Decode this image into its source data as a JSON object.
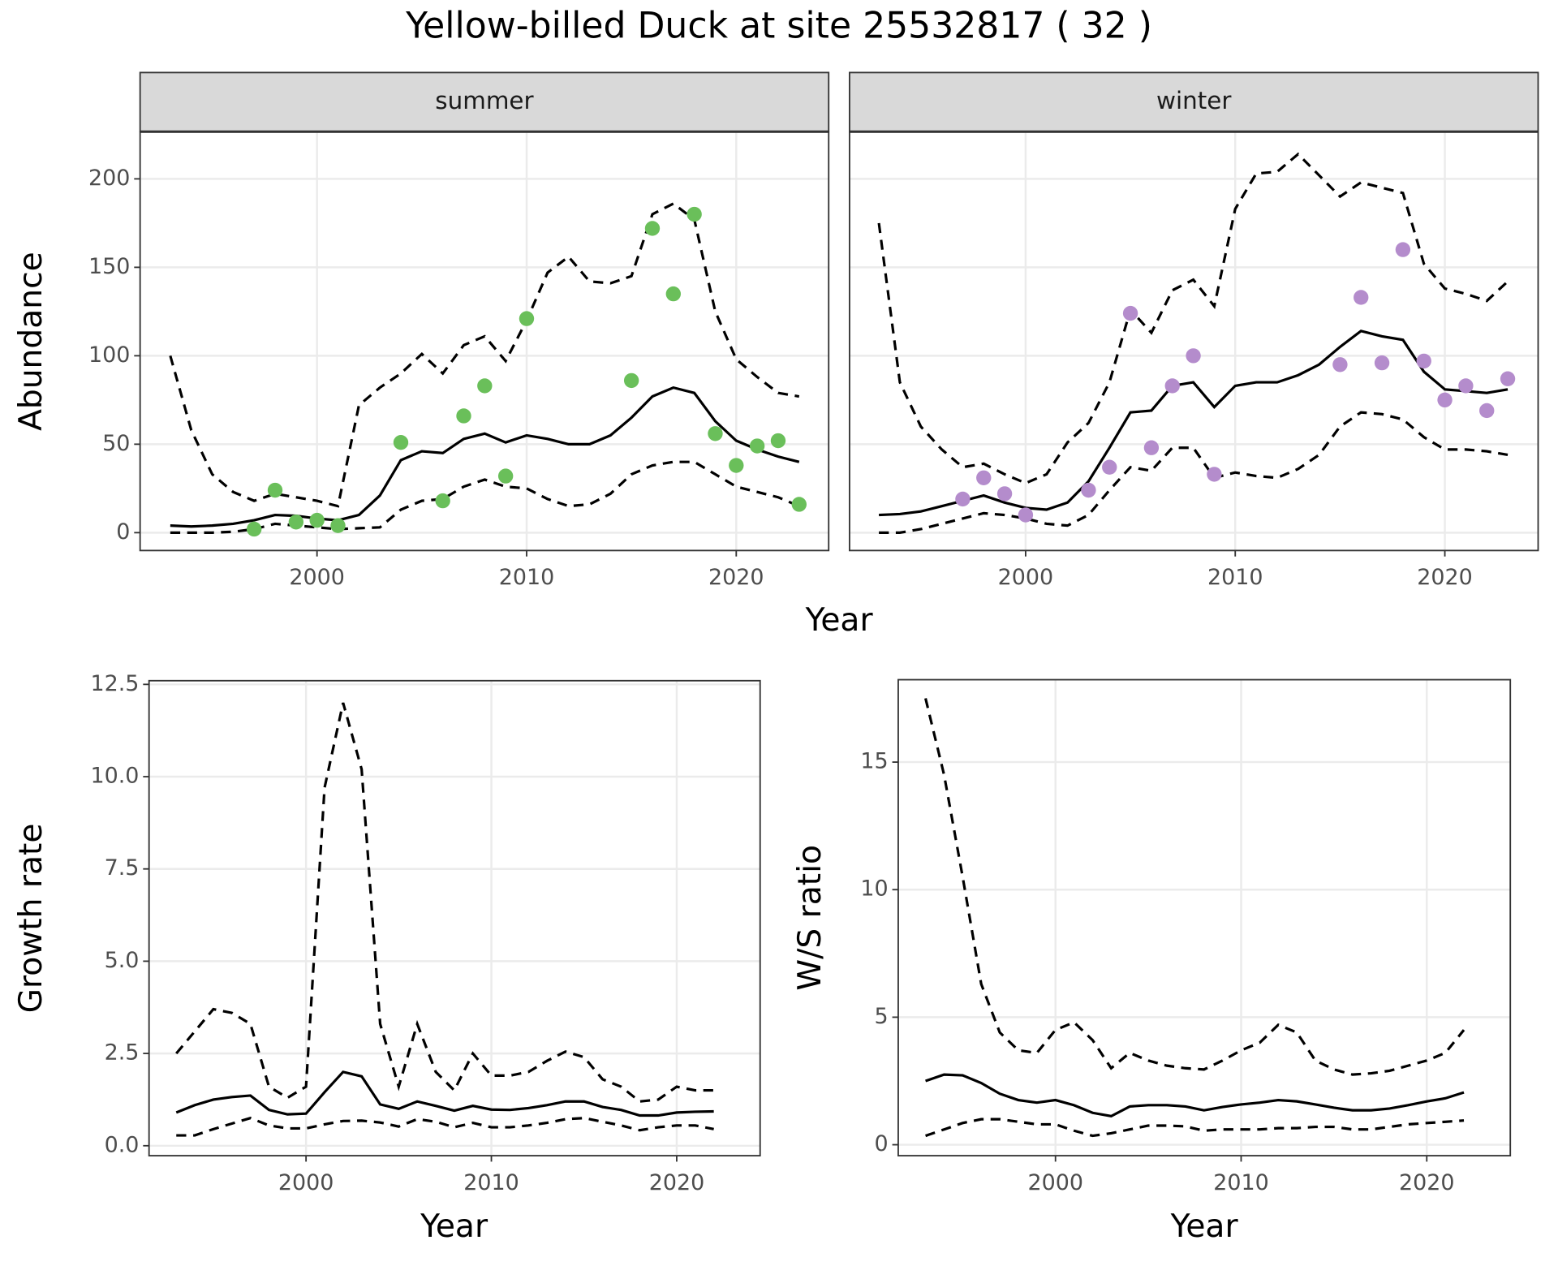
{
  "title": "Yellow-billed Duck at site 25532817 ( 32 )",
  "chart_data": [
    {
      "type": "line",
      "facet": "summer",
      "ylabel": "Abundance",
      "xlabel": "Year",
      "x": [
        1993,
        1994,
        1995,
        1996,
        1997,
        1998,
        1999,
        2000,
        2001,
        2002,
        2003,
        2004,
        2005,
        2006,
        2007,
        2008,
        2009,
        2010,
        2011,
        2012,
        2013,
        2014,
        2015,
        2016,
        2017,
        2018,
        2019,
        2020,
        2021,
        2022,
        2023
      ],
      "series": [
        {
          "color": "#000000",
          "dash": "solid",
          "values": [
            4,
            3.5,
            4,
            5,
            7,
            10,
            9.5,
            8,
            7,
            10,
            21,
            41,
            46,
            45,
            53,
            56,
            51,
            55,
            53,
            50,
            50,
            55,
            65,
            77,
            82,
            79,
            63,
            52,
            47,
            43,
            40
          ]
        },
        {
          "color": "#000000",
          "dash": "dashed",
          "values": [
            100,
            58,
            33,
            23,
            18,
            22,
            20,
            18,
            15,
            72,
            82,
            90,
            101,
            90,
            106,
            111,
            97,
            120,
            147,
            156,
            142,
            141,
            145,
            180,
            186,
            177,
            125,
            98,
            88,
            79,
            77
          ]
        },
        {
          "color": "#000000",
          "dash": "dashed",
          "values": [
            0,
            0,
            0,
            0.5,
            2,
            5,
            4,
            3,
            2,
            2.5,
            3,
            13,
            18,
            19,
            26,
            30,
            26,
            25,
            19,
            15,
            16,
            22,
            33,
            38,
            40,
            40,
            33,
            26,
            23,
            20,
            15
          ]
        }
      ],
      "points": {
        "type": "scatter",
        "color": "#6abf5a",
        "x": [
          1997,
          1998,
          1999,
          2000,
          2001,
          2004,
          2006,
          2007,
          2008,
          2009,
          2010,
          2015,
          2016,
          2017,
          2018,
          2019,
          2020,
          2021,
          2022,
          2023
        ],
        "values": [
          2,
          24,
          6,
          7,
          4,
          51,
          18,
          66,
          83,
          32,
          121,
          86,
          172,
          135,
          180,
          56,
          38,
          49,
          52,
          16
        ]
      },
      "xlim": [
        1991.56,
        2024.41
      ],
      "xticks": [
        2000,
        2010,
        2020
      ],
      "ylim": [
        -10.1,
        226.4
      ],
      "yticks": [
        0,
        50,
        100,
        150,
        200
      ],
      "grid": true
    },
    {
      "type": "line",
      "facet": "winter",
      "x": [
        1993,
        1994,
        1995,
        1996,
        1997,
        1998,
        1999,
        2000,
        2001,
        2002,
        2003,
        2004,
        2005,
        2006,
        2007,
        2008,
        2009,
        2010,
        2011,
        2012,
        2013,
        2014,
        2015,
        2016,
        2017,
        2018,
        2019,
        2020,
        2021,
        2022,
        2023
      ],
      "series": [
        {
          "color": "#000000",
          "dash": "solid",
          "values": [
            10,
            10.5,
            12,
            15,
            18,
            21,
            17,
            14,
            13,
            17,
            29,
            48,
            68,
            69,
            83,
            85,
            71,
            83,
            85,
            85,
            89,
            95,
            105,
            114,
            111,
            109,
            91,
            81,
            80,
            79,
            81
          ]
        },
        {
          "color": "#000000",
          "dash": "dashed",
          "values": [
            175,
            85,
            60,
            47,
            37,
            39,
            33,
            28,
            33,
            51,
            62,
            85,
            126,
            113,
            137,
            143,
            128,
            183,
            203,
            204,
            214,
            202,
            190,
            198,
            195,
            192,
            152,
            138,
            135,
            131,
            142
          ]
        },
        {
          "color": "#000000",
          "dash": "dashed",
          "values": [
            0,
            0,
            2,
            5,
            8,
            11,
            10,
            8,
            5,
            4,
            10,
            24,
            37,
            35,
            48,
            48,
            31,
            34,
            32,
            31,
            36,
            44,
            60,
            68,
            67,
            64,
            54,
            47,
            47,
            46,
            44
          ]
        }
      ],
      "points": {
        "type": "scatter",
        "color": "#b48ccc",
        "x": [
          1997,
          1998,
          1999,
          2000,
          2003,
          2004,
          2005,
          2006,
          2007,
          2008,
          2009,
          2015,
          2016,
          2017,
          2018,
          2019,
          2020,
          2021,
          2022,
          2023
        ],
        "values": [
          19,
          31,
          22,
          10,
          24,
          37,
          124,
          48,
          83,
          100,
          33,
          95,
          133,
          96,
          160,
          97,
          75,
          83,
          69,
          87
        ]
      },
      "xlim": [
        1991.6,
        2024.45
      ],
      "xticks": [
        2000,
        2010,
        2020
      ],
      "grid": true
    },
    {
      "type": "line",
      "ylabel": "Growth rate",
      "xlabel": "Year",
      "x": [
        1993,
        1994,
        1995,
        1996,
        1997,
        1998,
        1999,
        2000,
        2001,
        2002,
        2003,
        2004,
        2005,
        2006,
        2007,
        2008,
        2009,
        2010,
        2011,
        2012,
        2013,
        2014,
        2015,
        2016,
        2017,
        2018,
        2019,
        2020,
        2021,
        2022
      ],
      "series": [
        {
          "color": "#000000",
          "dash": "solid",
          "values": [
            0.9,
            1.1,
            1.25,
            1.32,
            1.36,
            0.97,
            0.85,
            0.87,
            1.45,
            2.0,
            1.88,
            1.12,
            1.0,
            1.2,
            1.08,
            0.95,
            1.08,
            0.98,
            0.97,
            1.02,
            1.1,
            1.2,
            1.2,
            1.05,
            0.97,
            0.82,
            0.82,
            0.9,
            0.92,
            0.93
          ]
        },
        {
          "color": "#000000",
          "dash": "dashed",
          "values": [
            2.5,
            3.1,
            3.7,
            3.6,
            3.3,
            1.6,
            1.3,
            1.6,
            9.7,
            12,
            10.2,
            3.3,
            1.6,
            3.3,
            2.0,
            1.5,
            2.5,
            1.9,
            1.9,
            2.0,
            2.3,
            2.55,
            2.4,
            1.8,
            1.6,
            1.2,
            1.25,
            1.6,
            1.5,
            1.5
          ]
        },
        {
          "color": "#000000",
          "dash": "dashed",
          "values": [
            0.28,
            0.28,
            0.45,
            0.6,
            0.75,
            0.55,
            0.47,
            0.47,
            0.58,
            0.67,
            0.68,
            0.63,
            0.52,
            0.72,
            0.65,
            0.5,
            0.62,
            0.5,
            0.5,
            0.55,
            0.62,
            0.72,
            0.75,
            0.65,
            0.55,
            0.42,
            0.5,
            0.55,
            0.55,
            0.45
          ]
        }
      ],
      "xlim": [
        1991.53,
        2024.5
      ],
      "xticks": [
        2000,
        2010,
        2020
      ],
      "ylim": [
        -0.27,
        12.6
      ],
      "yticks": [
        {
          "value": 0,
          "label": "0.0"
        },
        2.5,
        {
          "value": 5,
          "label": "5.0"
        },
        7.5,
        {
          "value": 10,
          "label": "10.0"
        },
        12.5
      ],
      "grid": true
    },
    {
      "type": "line",
      "ylabel": "W/S ratio",
      "xlabel": "Year",
      "x": [
        1993,
        1994,
        1995,
        1996,
        1997,
        1998,
        1999,
        2000,
        2001,
        2002,
        2003,
        2004,
        2005,
        2006,
        2007,
        2008,
        2009,
        2010,
        2011,
        2012,
        2013,
        2014,
        2015,
        2016,
        2017,
        2018,
        2019,
        2020,
        2021,
        2022
      ],
      "series": [
        {
          "color": "#000000",
          "dash": "solid",
          "values": [
            2.5,
            2.75,
            2.72,
            2.42,
            2.0,
            1.75,
            1.65,
            1.75,
            1.55,
            1.25,
            1.12,
            1.5,
            1.55,
            1.55,
            1.5,
            1.35,
            1.48,
            1.58,
            1.65,
            1.75,
            1.7,
            1.58,
            1.45,
            1.35,
            1.35,
            1.42,
            1.55,
            1.7,
            1.82,
            2.05
          ]
        },
        {
          "color": "#000000",
          "dash": "dashed",
          "values": [
            17.5,
            14.5,
            10.5,
            6.3,
            4.4,
            3.7,
            3.6,
            4.5,
            4.8,
            4.1,
            3.0,
            3.6,
            3.3,
            3.1,
            3.0,
            2.95,
            3.3,
            3.7,
            4.0,
            4.7,
            4.4,
            3.3,
            2.95,
            2.75,
            2.8,
            2.9,
            3.1,
            3.3,
            3.6,
            4.5
          ]
        },
        {
          "color": "#000000",
          "dash": "dashed",
          "values": [
            0.35,
            0.6,
            0.85,
            1.0,
            1.0,
            0.9,
            0.8,
            0.8,
            0.55,
            0.35,
            0.45,
            0.6,
            0.75,
            0.75,
            0.72,
            0.55,
            0.6,
            0.6,
            0.6,
            0.65,
            0.65,
            0.7,
            0.7,
            0.6,
            0.6,
            0.7,
            0.8,
            0.85,
            0.9,
            0.95
          ]
        }
      ],
      "xlim": [
        1991.53,
        2024.5
      ],
      "xticks": [
        2000,
        2010,
        2020
      ],
      "ylim": [
        -0.43,
        18.23
      ],
      "yticks": [
        0,
        5,
        10,
        15
      ],
      "grid": true
    }
  ]
}
